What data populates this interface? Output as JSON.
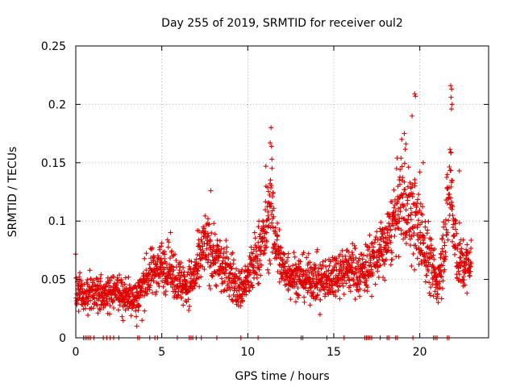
{
  "chart_data": {
    "type": "scatter",
    "title": "Day 255 of 2019, SRMTID for receiver oul2",
    "xlabel": "GPS time / hours",
    "ylabel": "SRMTID / TECUs",
    "xlim": [
      0,
      24
    ],
    "ylim": [
      0,
      0.25
    ],
    "x_ticks": [
      0,
      5,
      10,
      15,
      20
    ],
    "x_tick_labels": [
      "0",
      "5",
      "10",
      "15",
      "20"
    ],
    "y_ticks": [
      0,
      0.05,
      0.1,
      0.15,
      0.2,
      0.25
    ],
    "y_tick_labels": [
      "0",
      "0.05",
      "0.1",
      "0.15",
      "0.2",
      "0.25"
    ],
    "grid": true,
    "marker": "+",
    "series_color": "#e00000",
    "trend": [
      [
        0.0,
        0.04,
        0.012
      ],
      [
        0.5,
        0.038,
        0.01
      ],
      [
        1.0,
        0.036,
        0.01
      ],
      [
        1.5,
        0.038,
        0.011
      ],
      [
        2.0,
        0.04,
        0.011
      ],
      [
        2.5,
        0.038,
        0.011
      ],
      [
        3.0,
        0.036,
        0.011
      ],
      [
        3.5,
        0.034,
        0.012
      ],
      [
        4.0,
        0.048,
        0.013
      ],
      [
        4.5,
        0.058,
        0.014
      ],
      [
        5.0,
        0.062,
        0.015
      ],
      [
        5.5,
        0.06,
        0.015
      ],
      [
        6.0,
        0.048,
        0.014
      ],
      [
        6.5,
        0.045,
        0.013
      ],
      [
        7.0,
        0.055,
        0.015
      ],
      [
        7.5,
        0.08,
        0.02
      ],
      [
        8.0,
        0.072,
        0.018
      ],
      [
        8.5,
        0.06,
        0.016
      ],
      [
        9.0,
        0.055,
        0.016
      ],
      [
        9.5,
        0.04,
        0.012
      ],
      [
        10.0,
        0.05,
        0.015
      ],
      [
        10.5,
        0.068,
        0.018
      ],
      [
        11.0,
        0.088,
        0.022
      ],
      [
        11.3,
        0.11,
        0.03
      ],
      [
        11.7,
        0.078,
        0.02
      ],
      [
        12.0,
        0.06,
        0.015
      ],
      [
        12.5,
        0.055,
        0.014
      ],
      [
        13.0,
        0.052,
        0.013
      ],
      [
        13.5,
        0.05,
        0.013
      ],
      [
        14.0,
        0.05,
        0.013
      ],
      [
        14.5,
        0.048,
        0.013
      ],
      [
        15.0,
        0.055,
        0.014
      ],
      [
        15.5,
        0.058,
        0.014
      ],
      [
        16.0,
        0.06,
        0.015
      ],
      [
        16.5,
        0.055,
        0.015
      ],
      [
        17.0,
        0.062,
        0.016
      ],
      [
        17.5,
        0.07,
        0.017
      ],
      [
        18.0,
        0.078,
        0.018
      ],
      [
        18.5,
        0.1,
        0.022
      ],
      [
        19.0,
        0.12,
        0.03
      ],
      [
        19.5,
        0.105,
        0.028
      ],
      [
        20.0,
        0.09,
        0.025
      ],
      [
        20.5,
        0.07,
        0.02
      ],
      [
        21.0,
        0.045,
        0.015
      ],
      [
        21.5,
        0.09,
        0.025
      ],
      [
        21.8,
        0.14,
        0.035
      ],
      [
        22.0,
        0.08,
        0.025
      ],
      [
        22.5,
        0.06,
        0.015
      ],
      [
        23.0,
        0.065,
        0.015
      ]
    ],
    "outliers": [
      [
        11.35,
        0.18
      ],
      [
        11.3,
        0.167
      ],
      [
        11.38,
        0.164
      ],
      [
        11.4,
        0.153
      ],
      [
        19.7,
        0.209
      ],
      [
        19.75,
        0.207
      ],
      [
        19.55,
        0.19
      ],
      [
        19.1,
        0.175
      ],
      [
        18.95,
        0.17
      ],
      [
        19.2,
        0.166
      ],
      [
        21.8,
        0.216
      ],
      [
        21.85,
        0.213
      ],
      [
        21.82,
        0.206
      ],
      [
        21.88,
        0.2
      ],
      [
        21.84,
        0.196
      ],
      [
        21.8,
        0.159
      ],
      [
        22.3,
        0.143
      ],
      [
        7.85,
        0.126
      ],
      [
        11.05,
        0.147
      ],
      [
        20.2,
        0.15
      ],
      [
        20.0,
        0.142
      ],
      [
        3.55,
        0.01
      ],
      [
        3.85,
        0.015
      ],
      [
        14.2,
        0.02
      ]
    ],
    "zero_markers": [
      0.45,
      0.55,
      0.65,
      0.75,
      0.85,
      1.05,
      1.6,
      1.8,
      2.0,
      2.2,
      2.5,
      3.6,
      3.7,
      4.3,
      4.6,
      4.75,
      5.9,
      6.6,
      6.7,
      6.8,
      7.0,
      7.3,
      8.2,
      9.6,
      10.6,
      13.1,
      13.2,
      14.6,
      15.6,
      16.8,
      16.9,
      17.0,
      17.1,
      17.2,
      17.7,
      18.1,
      18.2,
      18.6,
      18.7,
      19.6,
      20.8,
      20.9,
      21.0,
      21.6,
      21.7
    ]
  }
}
